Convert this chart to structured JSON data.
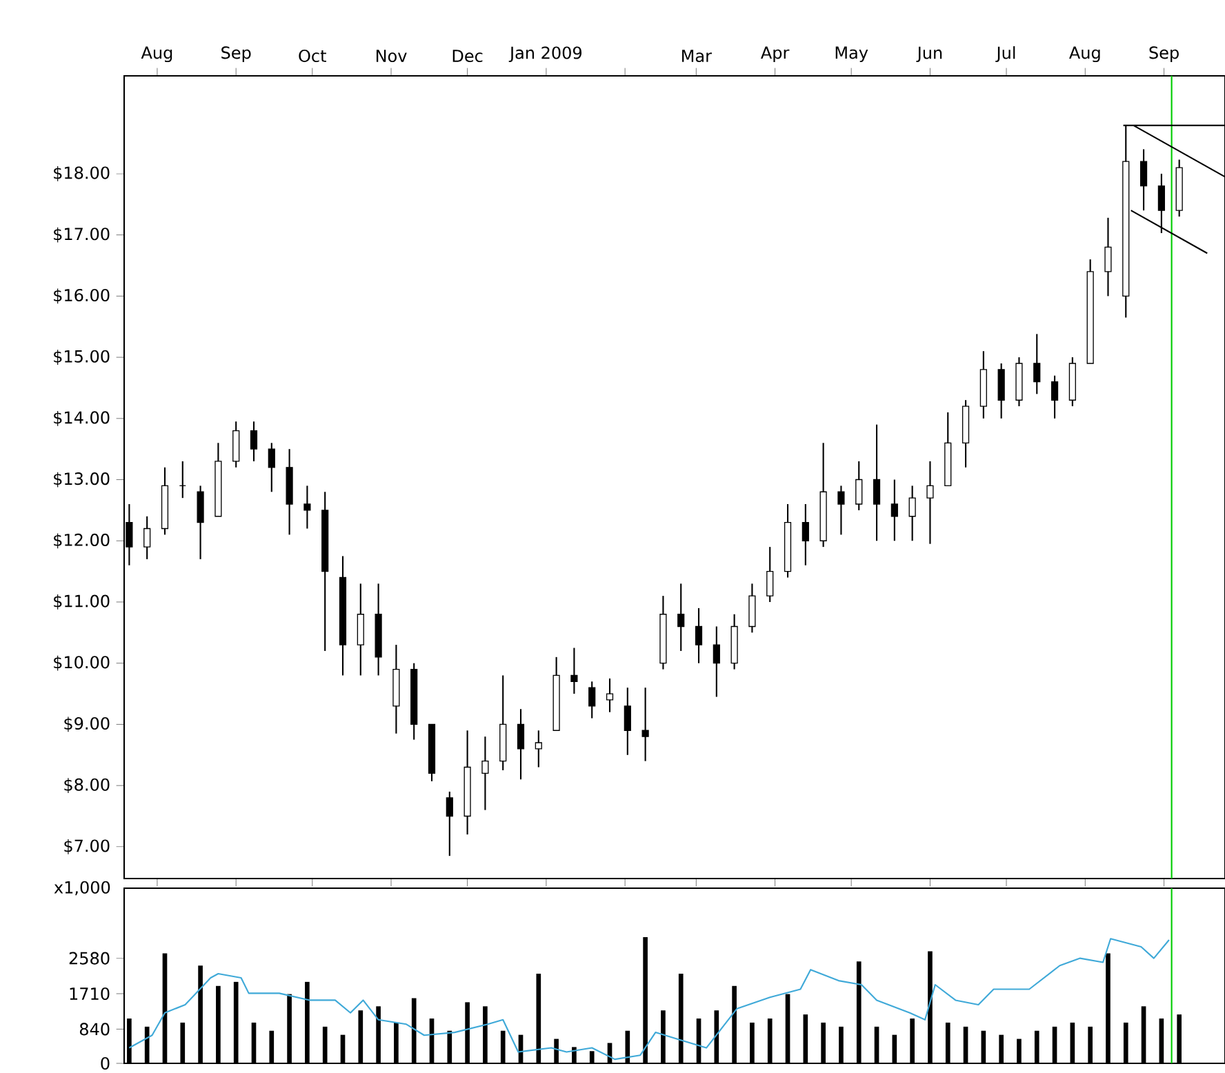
{
  "chart_data": [
    {
      "type": "candlestick",
      "xlim": [
        "2008-07-19",
        "2009-09-25"
      ],
      "ylim": [
        6.48,
        19.6
      ],
      "xticks": [
        {
          "value": "2008-08-01",
          "label": "Aug"
        },
        {
          "value": "2008-09-01",
          "label": "Sep"
        },
        {
          "value": "2008-10-01",
          "label": "Oct"
        },
        {
          "value": "2008-11-01",
          "label": "Nov"
        },
        {
          "value": "2008-12-01",
          "label": "Dec"
        },
        {
          "value": "2009-01-01",
          "label": "Jan 2009"
        },
        {
          "value": "2009-02-01",
          "label": null
        },
        {
          "value": "2009-03-01",
          "label": "Mar"
        },
        {
          "value": "2009-04-01",
          "label": "Apr"
        },
        {
          "value": "2009-05-01",
          "label": "May"
        },
        {
          "value": "2009-06-01",
          "label": "Jun"
        },
        {
          "value": "2009-07-01",
          "label": "Jul"
        },
        {
          "value": "2009-08-01",
          "label": "Aug"
        },
        {
          "value": "2009-09-01",
          "label": "Sep"
        }
      ],
      "yticks": [
        {
          "value": 7,
          "label": "$7.00"
        },
        {
          "value": 8,
          "label": "$8.00"
        },
        {
          "value": 9,
          "label": "$9.00"
        },
        {
          "value": 10,
          "label": "$10.00"
        },
        {
          "value": 11,
          "label": "$11.00"
        },
        {
          "value": 12,
          "label": "$12.00"
        },
        {
          "value": 13,
          "label": "$13.00"
        },
        {
          "value": 14,
          "label": "$14.00"
        },
        {
          "value": 15,
          "label": "$15.00"
        },
        {
          "value": 16,
          "label": "$16.00"
        },
        {
          "value": 17,
          "label": "$17.00"
        },
        {
          "value": 18,
          "label": "$18.00"
        }
      ],
      "x": [
        "2008-07-21",
        "2008-07-28",
        "2008-08-04",
        "2008-08-11",
        "2008-08-18",
        "2008-08-25",
        "2008-09-01",
        "2008-09-08",
        "2008-09-15",
        "2008-09-22",
        "2008-09-29",
        "2008-10-06",
        "2008-10-13",
        "2008-10-20",
        "2008-10-27",
        "2008-11-03",
        "2008-11-10",
        "2008-11-17",
        "2008-11-24",
        "2008-12-01",
        "2008-12-08",
        "2008-12-15",
        "2008-12-22",
        "2008-12-29",
        "2009-01-05",
        "2009-01-12",
        "2009-01-19",
        "2009-01-26",
        "2009-02-02",
        "2009-02-09",
        "2009-02-16",
        "2009-02-23",
        "2009-03-02",
        "2009-03-09",
        "2009-03-16",
        "2009-03-23",
        "2009-03-30",
        "2009-04-06",
        "2009-04-13",
        "2009-04-20",
        "2009-04-27",
        "2009-05-04",
        "2009-05-11",
        "2009-05-18",
        "2009-05-25",
        "2009-06-01",
        "2009-06-08",
        "2009-06-15",
        "2009-06-22",
        "2009-06-29",
        "2009-07-06",
        "2009-07-13",
        "2009-07-20",
        "2009-07-27",
        "2009-08-03",
        "2009-08-10",
        "2009-08-17",
        "2009-08-24",
        "2009-08-31",
        "2009-09-07"
      ],
      "ohlc": [
        [
          12.3,
          12.6,
          11.6,
          11.9
        ],
        [
          11.9,
          12.4,
          11.7,
          12.2
        ],
        [
          12.2,
          13.2,
          12.1,
          12.9
        ],
        [
          12.9,
          13.3,
          12.7,
          12.9
        ],
        [
          12.8,
          12.9,
          11.7,
          12.3
        ],
        [
          12.4,
          13.6,
          12.4,
          13.3
        ],
        [
          13.3,
          13.95,
          13.2,
          13.8
        ],
        [
          13.8,
          13.95,
          13.3,
          13.5
        ],
        [
          13.5,
          13.6,
          12.8,
          13.2
        ],
        [
          13.2,
          13.5,
          12.1,
          12.6
        ],
        [
          12.6,
          12.9,
          12.2,
          12.5
        ],
        [
          12.5,
          12.8,
          10.2,
          11.5
        ],
        [
          11.4,
          11.75,
          9.8,
          10.3
        ],
        [
          10.3,
          11.3,
          9.8,
          10.8
        ],
        [
          10.8,
          11.3,
          9.8,
          10.1
        ],
        [
          9.3,
          10.3,
          8.85,
          9.9
        ],
        [
          9.9,
          10.0,
          8.75,
          9.0
        ],
        [
          9.0,
          9.0,
          8.07,
          8.2
        ],
        [
          7.8,
          7.9,
          6.85,
          7.5
        ],
        [
          7.5,
          8.9,
          7.2,
          8.3
        ],
        [
          8.2,
          8.8,
          7.6,
          8.4
        ],
        [
          8.4,
          9.8,
          8.25,
          9.0
        ],
        [
          9.0,
          9.25,
          8.1,
          8.6
        ],
        [
          8.6,
          8.9,
          8.3,
          8.7
        ],
        [
          8.9,
          10.1,
          8.9,
          9.8
        ],
        [
          9.8,
          10.25,
          9.5,
          9.7
        ],
        [
          9.6,
          9.7,
          9.1,
          9.3
        ],
        [
          9.4,
          9.75,
          9.2,
          9.5
        ],
        [
          9.3,
          9.6,
          8.5,
          8.9
        ],
        [
          8.9,
          9.6,
          8.4,
          8.8
        ],
        [
          10.0,
          11.1,
          9.9,
          10.8
        ],
        [
          10.8,
          11.3,
          10.2,
          10.6
        ],
        [
          10.6,
          10.9,
          10.0,
          10.3
        ],
        [
          10.3,
          10.6,
          9.45,
          10.0
        ],
        [
          10.0,
          10.8,
          9.9,
          10.6
        ],
        [
          10.6,
          11.3,
          10.5,
          11.1
        ],
        [
          11.1,
          11.9,
          11.0,
          11.5
        ],
        [
          11.5,
          12.6,
          11.4,
          12.3
        ],
        [
          12.3,
          12.6,
          11.6,
          12.0
        ],
        [
          12.0,
          13.6,
          11.9,
          12.8
        ],
        [
          12.8,
          12.9,
          12.1,
          12.6
        ],
        [
          12.6,
          13.3,
          12.5,
          13.0
        ],
        [
          13.0,
          13.9,
          12.0,
          12.6
        ],
        [
          12.6,
          13.0,
          12.0,
          12.4
        ],
        [
          12.4,
          12.9,
          12.0,
          12.7
        ],
        [
          12.7,
          13.3,
          11.95,
          12.9
        ],
        [
          12.9,
          14.1,
          12.9,
          13.6
        ],
        [
          13.6,
          14.3,
          13.2,
          14.2
        ],
        [
          14.2,
          15.1,
          14.0,
          14.8
        ],
        [
          14.8,
          14.9,
          14.0,
          14.3
        ],
        [
          14.3,
          15.0,
          14.2,
          14.9
        ],
        [
          14.9,
          15.38,
          14.4,
          14.6
        ],
        [
          14.6,
          14.7,
          14.0,
          14.3
        ],
        [
          14.3,
          15.0,
          14.2,
          14.9
        ],
        [
          14.9,
          16.6,
          14.9,
          16.4
        ],
        [
          16.4,
          17.28,
          16.0,
          16.8
        ],
        [
          16.0,
          18.79,
          15.65,
          18.2
        ],
        [
          18.2,
          18.4,
          17.4,
          17.8
        ],
        [
          17.8,
          18.0,
          17.03,
          17.4
        ],
        [
          17.4,
          18.23,
          17.3,
          18.1
        ]
      ],
      "series": [
        {
          "type": "line",
          "color": "#000000",
          "x": [
            "2009-08-16",
            "2009-09-25"
          ],
          "values": [
            18.79,
            18.79
          ]
        },
        {
          "type": "line",
          "color": "#000000",
          "x": [
            "2009-08-20",
            "2009-09-25"
          ],
          "values": [
            18.79,
            17.95
          ]
        },
        {
          "type": "line",
          "color": "#000000",
          "x": [
            "2009-08-19",
            "2009-09-18"
          ],
          "values": [
            17.4,
            16.7
          ]
        }
      ],
      "ref_lines": [
        {
          "axis": "x",
          "value": "2009-09-04",
          "color": "#00cc00"
        }
      ]
    },
    {
      "type": "bar",
      "ylabel": "x1,000",
      "xlim": [
        "2008-07-19",
        "2009-09-25"
      ],
      "ylim": [
        0,
        4300
      ],
      "yticks": [
        0,
        840,
        1710,
        2580
      ],
      "tick_labels": "y",
      "series": [
        {
          "type": "bar",
          "color": "#000000",
          "x": [
            "2008-07-21",
            "2008-07-28",
            "2008-08-04",
            "2008-08-11",
            "2008-08-18",
            "2008-08-25",
            "2008-09-01",
            "2008-09-08",
            "2008-09-15",
            "2008-09-22",
            "2008-09-29",
            "2008-10-06",
            "2008-10-13",
            "2008-10-20",
            "2008-10-27",
            "2008-11-03",
            "2008-11-10",
            "2008-11-17",
            "2008-11-24",
            "2008-12-01",
            "2008-12-08",
            "2008-12-15",
            "2008-12-22",
            "2008-12-29",
            "2009-01-05",
            "2009-01-12",
            "2009-01-19",
            "2009-01-26",
            "2009-02-02",
            "2009-02-09",
            "2009-02-16",
            "2009-02-23",
            "2009-03-02",
            "2009-03-09",
            "2009-03-16",
            "2009-03-23",
            "2009-03-30",
            "2009-04-06",
            "2009-04-13",
            "2009-04-20",
            "2009-04-27",
            "2009-05-04",
            "2009-05-11",
            "2009-05-18",
            "2009-05-25",
            "2009-06-01",
            "2009-06-08",
            "2009-06-15",
            "2009-06-22",
            "2009-06-29",
            "2009-07-06",
            "2009-07-13",
            "2009-07-20",
            "2009-07-27",
            "2009-08-03",
            "2009-08-10",
            "2009-08-17",
            "2009-08-24",
            "2009-08-31",
            "2009-09-07"
          ],
          "values": [
            1100,
            900,
            2700,
            1000,
            2400,
            1900,
            2000,
            1000,
            800,
            1700,
            2000,
            900,
            700,
            1300,
            1400,
            1000,
            1600,
            1100,
            800,
            1500,
            1400,
            800,
            700,
            2200,
            600,
            400,
            300,
            500,
            800,
            3100,
            1300,
            2200,
            1100,
            1300,
            1900,
            1000,
            1100,
            1700,
            1200,
            1000,
            900,
            2500,
            900,
            700,
            1100,
            2750,
            1000,
            900,
            800,
            700,
            600,
            800,
            900,
            1000,
            900,
            2700,
            1000,
            1400,
            1100,
            1200
          ]
        },
        {
          "type": "line",
          "color": "#3fa9d8",
          "x": [
            "2008-07-21",
            "2008-07-30",
            "2008-08-04",
            "2008-08-12",
            "2008-08-22",
            "2008-08-25",
            "2008-09-03",
            "2008-09-06",
            "2008-09-18",
            "2008-09-30",
            "2008-10-10",
            "2008-10-16",
            "2008-10-21",
            "2008-10-27",
            "2008-11-07",
            "2008-11-14",
            "2008-11-26",
            "2008-12-09",
            "2008-12-15",
            "2008-12-21",
            "2009-01-03",
            "2009-01-09",
            "2009-01-19",
            "2009-01-28",
            "2009-02-07",
            "2009-02-13",
            "2009-02-22",
            "2009-03-05",
            "2009-03-17",
            "2009-03-30",
            "2009-04-11",
            "2009-04-15",
            "2009-04-26",
            "2009-05-05",
            "2009-05-11",
            "2009-05-24",
            "2009-05-30",
            "2009-06-03",
            "2009-06-11",
            "2009-06-20",
            "2009-06-26",
            "2009-07-10",
            "2009-07-22",
            "2009-07-30",
            "2009-08-08",
            "2009-08-11",
            "2009-08-23",
            "2009-08-28",
            "2009-09-03"
          ],
          "values": [
            380,
            690,
            1240,
            1440,
            2100,
            2200,
            2100,
            1720,
            1720,
            1550,
            1550,
            1240,
            1550,
            1070,
            960,
            690,
            760,
            960,
            1070,
            280,
            380,
            280,
            380,
            100,
            200,
            760,
            590,
            380,
            1340,
            1620,
            1820,
            2300,
            2030,
            1930,
            1550,
            1240,
            1070,
            1930,
            1550,
            1440,
            1820,
            1820,
            2400,
            2580,
            2480,
            3060,
            2860,
            2580,
            3030
          ]
        }
      ],
      "ref_lines": [
        {
          "axis": "x",
          "value": "2009-09-04",
          "color": "#00cc00"
        }
      ]
    }
  ]
}
